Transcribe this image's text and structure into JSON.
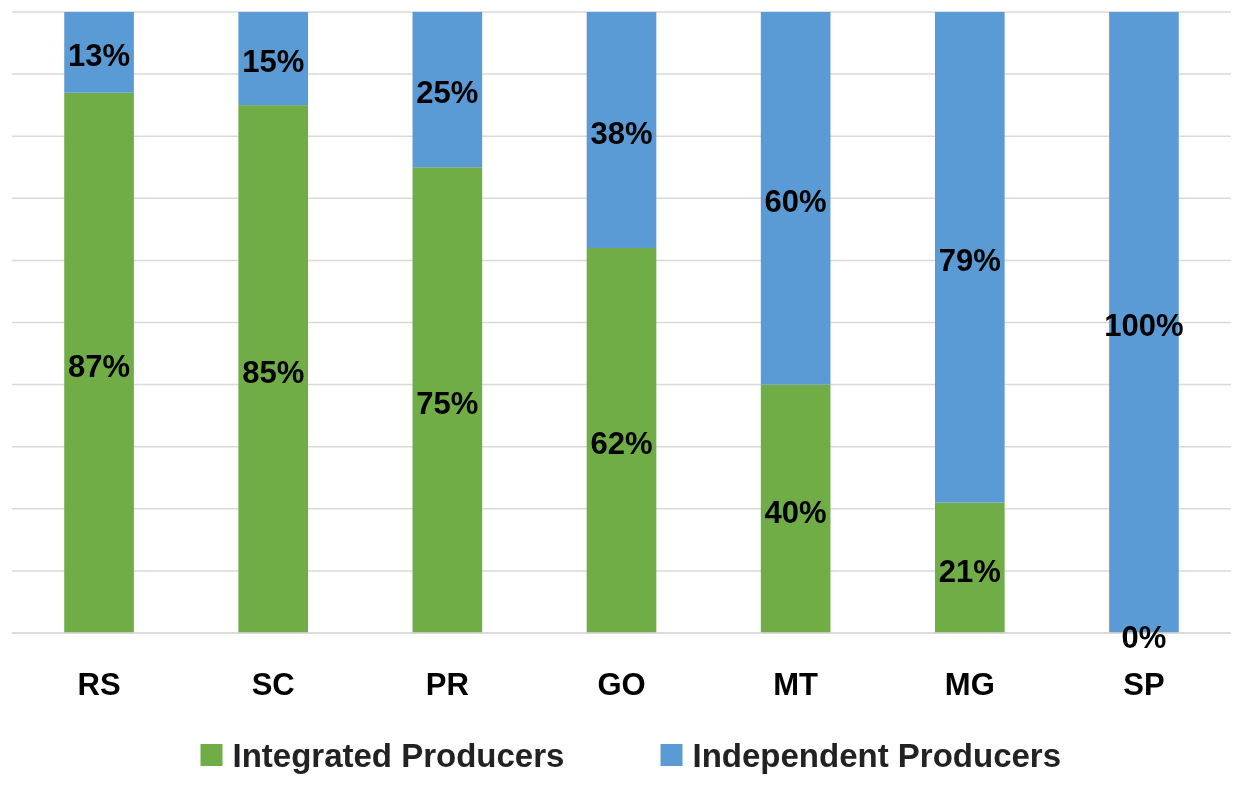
{
  "chart_data": {
    "type": "bar",
    "stacked": true,
    "categories": [
      "RS",
      "SC",
      "PR",
      "GO",
      "MT",
      "MG",
      "SP"
    ],
    "series": [
      {
        "name": "Integrated Producers",
        "color": "#70ad47",
        "values": [
          87,
          85,
          75,
          62,
          40,
          21,
          0
        ],
        "value_labels": [
          "87%",
          "85%",
          "75%",
          "62%",
          "40%",
          "21%",
          "0%"
        ]
      },
      {
        "name": "Independent Producers",
        "color": "#5b9bd5",
        "values": [
          13,
          15,
          25,
          38,
          60,
          79,
          100
        ],
        "value_labels": [
          "13%",
          "15%",
          "25%",
          "38%",
          "60%",
          "79%",
          "100%"
        ]
      }
    ],
    "grid": "y",
    "tick_labels": "x",
    "legend": "bottom"
  }
}
